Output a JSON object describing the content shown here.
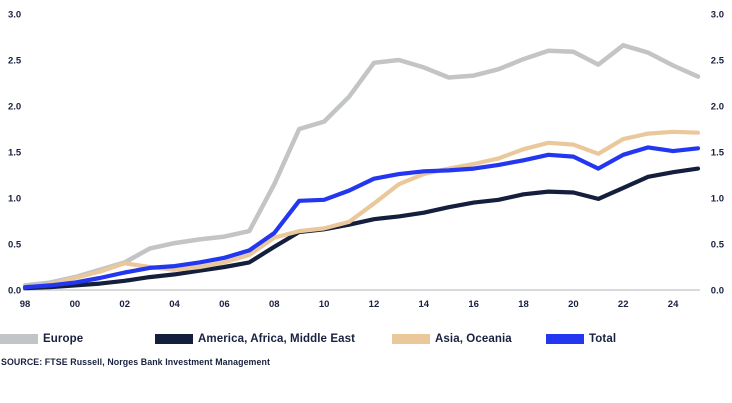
{
  "figure": {
    "source_text": "SOURCE: FTSE Russell, Norges Bank Investment Management"
  },
  "legend": {
    "items": [
      {
        "label": "Europe",
        "color": "#c2c4c6"
      },
      {
        "label": "America, Africa, Middle East",
        "color": "#141f3d"
      },
      {
        "label": "Asia, Oceania",
        "color": "#eac89c"
      },
      {
        "label": "Total",
        "color": "#2336f0"
      }
    ]
  },
  "chart_data": {
    "type": "line",
    "title": "",
    "xlabel": "",
    "ylabel": "",
    "grid": false,
    "legend_position": "bottom",
    "ylim": [
      0.0,
      3.0
    ],
    "y_ticks": [
      0.0,
      0.5,
      1.0,
      1.5,
      2.0,
      2.5,
      3.0
    ],
    "y_axis_sides": [
      "left",
      "right"
    ],
    "x_tick_labels": [
      "98",
      "00",
      "02",
      "04",
      "06",
      "08",
      "10",
      "12",
      "14",
      "16",
      "18",
      "20",
      "22",
      "24"
    ],
    "x_tick_years": [
      1998,
      2000,
      2002,
      2004,
      2006,
      2008,
      2010,
      2012,
      2014,
      2016,
      2018,
      2020,
      2022,
      2024
    ],
    "x": [
      1998,
      1999,
      2000,
      2001,
      2002,
      2003,
      2004,
      2005,
      2006,
      2007,
      2008,
      2009,
      2010,
      2011,
      2012,
      2013,
      2014,
      2015,
      2016,
      2017,
      2018,
      2019,
      2020,
      2021,
      2022,
      2023,
      2024,
      2025
    ],
    "series": [
      {
        "name": "Europe",
        "color": "#c2c4c6",
        "line_width": 4.5,
        "values": [
          0.05,
          0.08,
          0.14,
          0.22,
          0.3,
          0.45,
          0.51,
          0.55,
          0.58,
          0.64,
          1.15,
          1.75,
          1.83,
          2.1,
          2.47,
          2.5,
          2.42,
          2.31,
          2.33,
          2.4,
          2.51,
          2.6,
          2.59,
          2.45,
          2.66,
          2.58,
          2.44,
          2.32
        ]
      },
      {
        "name": "America, Africa, Middle East",
        "color": "#141f3d",
        "line_width": 4.2,
        "values": [
          0.02,
          0.03,
          0.05,
          0.07,
          0.1,
          0.14,
          0.17,
          0.21,
          0.25,
          0.3,
          0.47,
          0.63,
          0.66,
          0.71,
          0.77,
          0.8,
          0.84,
          0.9,
          0.95,
          0.98,
          1.04,
          1.07,
          1.06,
          0.99,
          1.11,
          1.23,
          1.28,
          1.32
        ]
      },
      {
        "name": "Asia, Oceania",
        "color": "#eac89c",
        "line_width": 4.2,
        "values": [
          0.03,
          0.06,
          0.13,
          0.2,
          0.29,
          0.25,
          0.22,
          0.25,
          0.3,
          0.38,
          0.57,
          0.64,
          0.67,
          0.74,
          0.94,
          1.15,
          1.26,
          1.32,
          1.37,
          1.43,
          1.53,
          1.6,
          1.58,
          1.48,
          1.64,
          1.7,
          1.72,
          1.71
        ]
      },
      {
        "name": "Total",
        "color": "#2336f0",
        "line_width": 4.2,
        "values": [
          0.03,
          0.05,
          0.08,
          0.13,
          0.19,
          0.24,
          0.26,
          0.3,
          0.35,
          0.43,
          0.62,
          0.97,
          0.98,
          1.08,
          1.21,
          1.26,
          1.29,
          1.3,
          1.32,
          1.36,
          1.41,
          1.47,
          1.45,
          1.32,
          1.47,
          1.55,
          1.51,
          1.54
        ]
      }
    ],
    "axis_line_color": "#d8dadc",
    "tick_label_color": "#18213f"
  }
}
